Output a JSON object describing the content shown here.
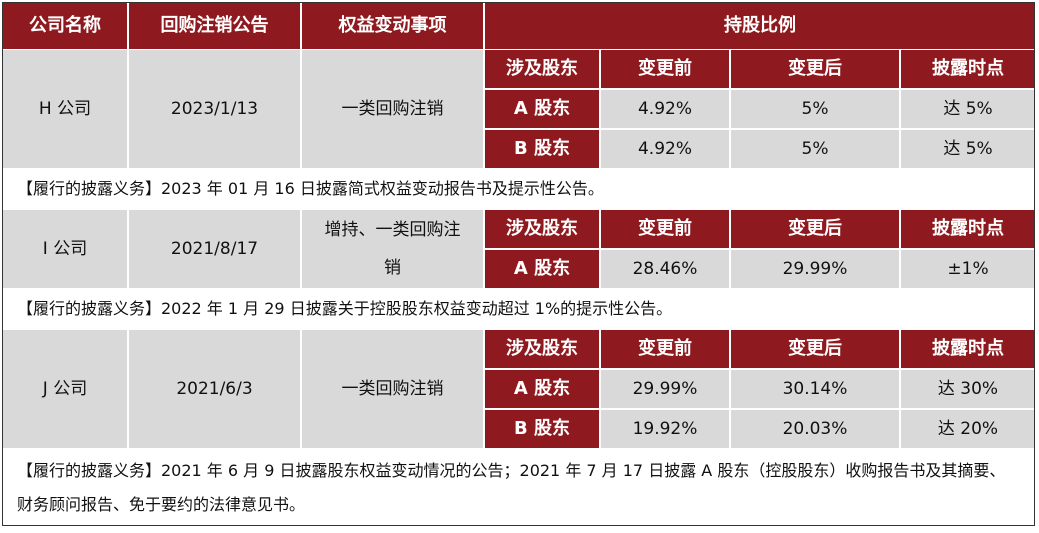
{
  "header": {
    "company": "公司名称",
    "buyback_notice": "回购注销公告",
    "event": "权益变动事项",
    "holding_ratio": "持股比例"
  },
  "sub_header": {
    "shareholder": "涉及股东",
    "before": "变更前",
    "after": "变更后",
    "disclose_point": "披露时点"
  },
  "companies": [
    {
      "name": "H 公司",
      "date": "2023/1/13",
      "event": "一类回购注销",
      "rows": [
        {
          "shareholder": "A 股东",
          "before": "4.92%",
          "after": "5%",
          "point": "达 5%"
        },
        {
          "shareholder": "B 股东",
          "before": "4.92%",
          "after": "5%",
          "point": "达 5%"
        }
      ],
      "note": "【履行的披露义务】2023 年 01 月 16 日披露简式权益变动报告书及提示性公告。"
    },
    {
      "name": "I 公司",
      "date": "2021/8/17",
      "event": "增持、一类回购注销",
      "rows": [
        {
          "shareholder": "A 股东",
          "before": "28.46%",
          "after": "29.99%",
          "point": "±1%"
        }
      ],
      "note": "【履行的披露义务】2022 年 1 月 29 日披露关于控股股东权益变动超过 1%的提示性公告。"
    },
    {
      "name": "J 公司",
      "date": "2021/6/3",
      "event": "一类回购注销",
      "rows": [
        {
          "shareholder": "A 股东",
          "before": "29.99%",
          "after": "30.14%",
          "point": "达 30%"
        },
        {
          "shareholder": "B 股东",
          "before": "19.92%",
          "after": "20.03%",
          "point": "达 20%"
        }
      ],
      "note": "【履行的披露义务】2021 年 6 月 9 日披露股东权益变动情况的公告；2021 年 7 月 17 日披露 A 股东（控股股东）收购报告书及其摘要、财务顾问报告、免于要约的法律意见书。"
    }
  ]
}
